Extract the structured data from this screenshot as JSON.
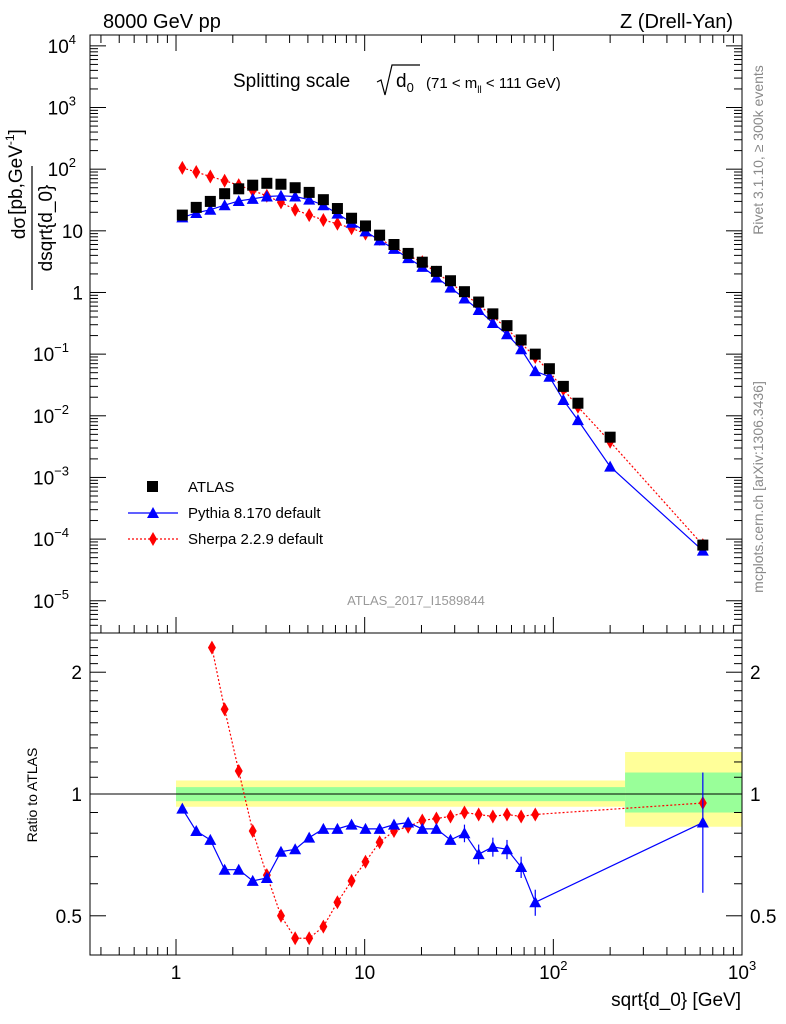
{
  "header": {
    "left": "8000 GeV pp",
    "right": "Z (Drell-Yan)"
  },
  "sidebar": {
    "rivet": "Rivet 3.1.10, ≥ 300k events",
    "mcplots": "mcplots.cern.ch [arXiv:1306.3436]"
  },
  "chart_data": [
    {
      "type": "scatter",
      "title_main": "Splitting scale",
      "title_sub": "(71 < m",
      "title_sub_index": "ll",
      "title_sub_end": " < 111 GeV)",
      "title_symbol": "d",
      "title_symbol_index": "0",
      "ylabel_num": "dσ",
      "ylabel_den": "dsqrt{d_0}",
      "ylabel_units": "[pb,GeV",
      "ylabel_units_exp": "-1",
      "ylabel_units_end": "]",
      "watermark": "ATLAS_2017_I1589844",
      "x_scale": "log",
      "y_scale": "log",
      "xlim": [
        0.35,
        1000
      ],
      "ylim": [
        3e-06,
        15000
      ],
      "y_ticks": [
        {
          "base": "10",
          "exp": "4",
          "value": 10000
        },
        {
          "base": "10",
          "exp": "3",
          "value": 1000
        },
        {
          "base": "10",
          "exp": "2",
          "value": 100
        },
        {
          "base": "10",
          "exp": "",
          "value": 10
        },
        {
          "base": "1",
          "exp": "",
          "value": 1
        },
        {
          "base": "10",
          "exp": "−1",
          "value": 0.1
        },
        {
          "base": "10",
          "exp": "−2",
          "value": 0.01
        },
        {
          "base": "10",
          "exp": "−3",
          "value": 0.001
        },
        {
          "base": "10",
          "exp": "−4",
          "value": 0.0001
        },
        {
          "base": "10",
          "exp": "−5",
          "value": 1e-05
        }
      ],
      "legend_placement": "bottom-left",
      "series": [
        {
          "name": "ATLAS",
          "marker": "square",
          "color": "#000000",
          "x": [
            1.08,
            1.28,
            1.52,
            1.81,
            2.15,
            2.55,
            3.03,
            3.6,
            4.28,
            5.08,
            6.04,
            7.17,
            8.52,
            10.1,
            12.0,
            14.3,
            17.0,
            20.2,
            24.0,
            28.5,
            33.8,
            40.2,
            47.8,
            56.8,
            67.5,
            80.2,
            95.3,
            113,
            135,
            200,
            620
          ],
          "y": [
            18,
            24,
            30,
            40,
            48,
            55,
            59,
            57,
            50,
            42,
            32,
            23,
            16,
            12,
            8.5,
            6,
            4.3,
            3.1,
            2.2,
            1.55,
            1.03,
            0.7,
            0.45,
            0.29,
            0.17,
            0.1,
            0.058,
            0.03,
            0.016,
            0.0045,
            8e-05
          ]
        },
        {
          "name": "Pythia 8.170 default",
          "marker": "triangle",
          "color": "#0000ff",
          "line": "solid",
          "x": [
            1.08,
            1.28,
            1.52,
            1.81,
            2.15,
            2.55,
            3.03,
            3.6,
            4.28,
            5.08,
            6.04,
            7.17,
            8.52,
            10.1,
            12.0,
            14.3,
            17.0,
            20.2,
            24.0,
            28.5,
            33.8,
            40.2,
            47.8,
            56.8,
            67.5,
            80.2,
            95.3,
            113,
            135,
            200,
            620
          ],
          "y": [
            16.5,
            19.5,
            22,
            26,
            30.5,
            33,
            36,
            37,
            36,
            32,
            26,
            19,
            13.5,
            9.8,
            7,
            5.1,
            3.6,
            2.6,
            1.75,
            1.2,
            0.8,
            0.52,
            0.32,
            0.21,
            0.12,
            0.053,
            0.043,
            0.018,
            0.0085,
            0.0015,
            6.5e-05
          ]
        },
        {
          "name": "Sherpa 2.2.9 default",
          "marker": "diamond",
          "color": "#ff0000",
          "line": "dotted",
          "x": [
            1.08,
            1.28,
            1.52,
            1.81,
            2.15,
            2.55,
            3.03,
            3.6,
            4.28,
            5.08,
            6.04,
            7.17,
            8.52,
            10.1,
            12.0,
            14.3,
            17.0,
            20.2,
            24.0,
            28.5,
            33.8,
            40.2,
            47.8,
            56.8,
            67.5,
            80.2,
            95.3,
            113,
            135,
            200,
            620
          ],
          "y": [
            105,
            90,
            76,
            65,
            55,
            45,
            37,
            29,
            22,
            18,
            15,
            13,
            11,
            9,
            7.4,
            5.5,
            4.0,
            3.1,
            2.1,
            1.45,
            0.95,
            0.63,
            0.41,
            0.26,
            0.15,
            0.09,
            0.052,
            0.027,
            0.014,
            0.0038,
            8e-05
          ]
        }
      ]
    },
    {
      "type": "scatter",
      "ylabel": "Ratio to ATLAS",
      "xlabel": "sqrt{d_0} [GeV]",
      "x_scale": "log",
      "y_scale": "log",
      "xlim": [
        0.35,
        1000
      ],
      "ylim": [
        0.4,
        2.5
      ],
      "x_ticks": [
        {
          "base": "1",
          "exp": "",
          "value": 1
        },
        {
          "base": "10",
          "exp": "",
          "value": 10
        },
        {
          "base": "10",
          "exp": "2",
          "value": 100
        },
        {
          "base": "10",
          "exp": "3",
          "value": 1000
        }
      ],
      "y_ticks": [
        {
          "label": "2",
          "value": 2
        },
        {
          "label": "1",
          "value": 1
        },
        {
          "label": "0.5",
          "value": 0.5
        }
      ],
      "reference_line": 1,
      "uncertainty_bands": {
        "colors": {
          "outer": "#ffff99",
          "inner": "#99ff99"
        },
        "bins": [
          {
            "xlo": 1.0,
            "xhi": 240,
            "outer": [
              0.93,
              1.08
            ],
            "inner": [
              0.96,
              1.04
            ]
          },
          {
            "xlo": 240,
            "xhi": 1000,
            "outer": [
              0.83,
              1.27
            ],
            "inner": [
              0.9,
              1.13
            ]
          }
        ]
      },
      "series": [
        {
          "name": "Pythia 8.170 default",
          "marker": "triangle",
          "color": "#0000ff",
          "line": "solid",
          "x": [
            1.08,
            1.28,
            1.52,
            1.81,
            2.15,
            2.55,
            3.03,
            3.6,
            4.28,
            5.08,
            6.04,
            7.17,
            8.52,
            10.1,
            12.0,
            14.3,
            17.0,
            20.2,
            24.0,
            28.5,
            33.8,
            40.2,
            47.8,
            56.8,
            67.5,
            80.2,
            620
          ],
          "y": [
            0.92,
            0.81,
            0.77,
            0.65,
            0.65,
            0.61,
            0.62,
            0.72,
            0.73,
            0.78,
            0.82,
            0.82,
            0.84,
            0.82,
            0.82,
            0.84,
            0.85,
            0.82,
            0.82,
            0.77,
            0.8,
            0.71,
            0.74,
            0.73,
            0.66,
            0.54,
            0.85
          ]
        },
        {
          "name": "Sherpa 2.2.9 default",
          "marker": "diamond",
          "color": "#ff0000",
          "line": "dotted",
          "x": [
            1.55,
            1.81,
            2.15,
            2.55,
            3.03,
            3.6,
            4.28,
            5.08,
            6.04,
            7.17,
            8.52,
            10.1,
            12.0,
            14.3,
            17.0,
            20.2,
            24.0,
            28.5,
            33.8,
            40.2,
            47.8,
            56.8,
            67.5,
            80.2,
            620
          ],
          "y": [
            2.3,
            1.62,
            1.14,
            0.81,
            0.63,
            0.5,
            0.44,
            0.44,
            0.47,
            0.54,
            0.61,
            0.68,
            0.76,
            0.81,
            0.83,
            0.86,
            0.87,
            0.88,
            0.9,
            0.89,
            0.88,
            0.89,
            0.88,
            0.89,
            0.95
          ]
        }
      ]
    }
  ]
}
